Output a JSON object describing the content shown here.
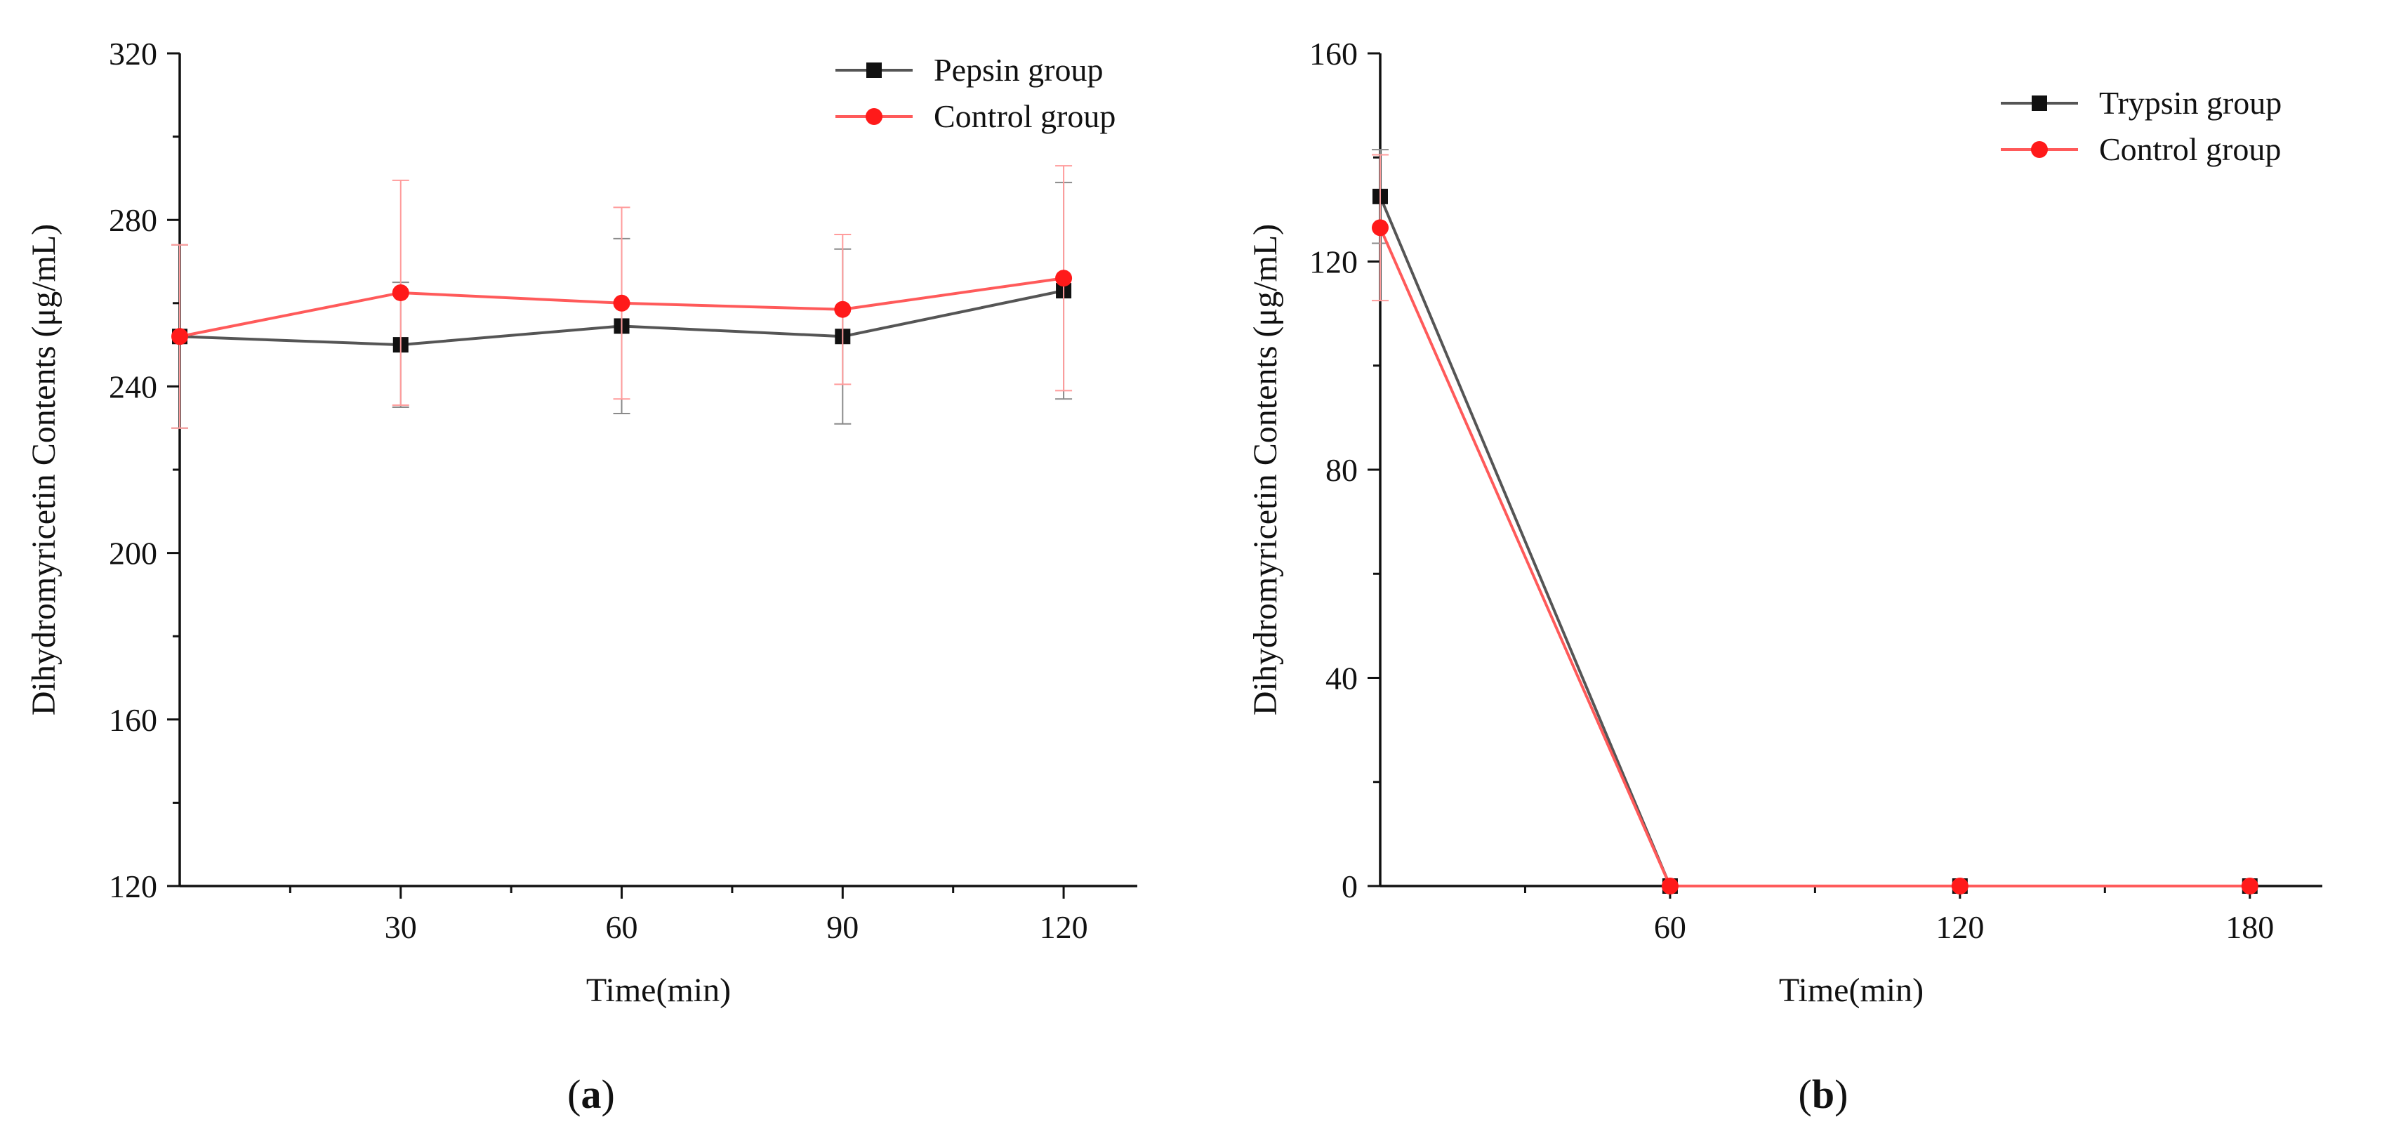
{
  "chart_data": [
    {
      "type": "line",
      "panel_label": "a",
      "title": "",
      "xlabel": "Time(min)",
      "ylabel": "Dihydromyricetin  Contents (μg/mL)",
      "xlim": [
        0,
        130
      ],
      "ylim": [
        120,
        320
      ],
      "x_ticks": [
        30,
        60,
        90,
        120
      ],
      "x_tick_labels": [
        "30",
        "60",
        "90",
        "120"
      ],
      "y_ticks": [
        120,
        160,
        200,
        240,
        280,
        320
      ],
      "y_tick_labels": [
        "120",
        "160",
        "200",
        "240",
        "280",
        "320"
      ],
      "grid": false,
      "legend_position": "top-right",
      "series": [
        {
          "name": "Pepsin group",
          "color": "#555555",
          "marker": "square",
          "marker_color": "#111111",
          "x": [
            0,
            30,
            60,
            90,
            120
          ],
          "values": [
            252,
            250,
            254.5,
            252,
            263
          ],
          "errors": [
            22,
            15,
            21,
            21,
            26
          ]
        },
        {
          "name": "Control group",
          "color": "#ff5a5a",
          "marker": "circle",
          "marker_color": "#ff1a1a",
          "x": [
            0,
            30,
            60,
            90,
            120
          ],
          "values": [
            252,
            262.5,
            260,
            258.5,
            266
          ],
          "errors": [
            22,
            27,
            23,
            18,
            27
          ]
        }
      ]
    },
    {
      "type": "line",
      "panel_label": "b",
      "title": "",
      "xlabel": "Time(min)",
      "ylabel": "Dihydromyricetin  Contents (μg/mL)",
      "xlim": [
        0,
        195
      ],
      "ylim": [
        0,
        160
      ],
      "x_ticks": [
        60,
        120,
        180
      ],
      "x_tick_labels": [
        "60",
        "120",
        "180"
      ],
      "y_ticks": [
        0,
        40,
        80,
        120,
        160
      ],
      "y_tick_labels": [
        "0",
        "40",
        "80",
        "120",
        "160"
      ],
      "grid": false,
      "legend_position": "top-right",
      "series": [
        {
          "name": "Trypsin group",
          "color": "#555555",
          "marker": "square",
          "marker_color": "#111111",
          "x": [
            0,
            60,
            120,
            180
          ],
          "values": [
            132.5,
            0,
            0,
            0
          ],
          "errors": [
            9,
            0,
            0,
            0
          ]
        },
        {
          "name": "Control group",
          "color": "#ff5a5a",
          "marker": "circle",
          "marker_color": "#ff1a1a",
          "x": [
            0,
            60,
            120,
            180
          ],
          "values": [
            126.5,
            0,
            0,
            0
          ],
          "errors": [
            14,
            0,
            0,
            0
          ]
        }
      ]
    }
  ]
}
